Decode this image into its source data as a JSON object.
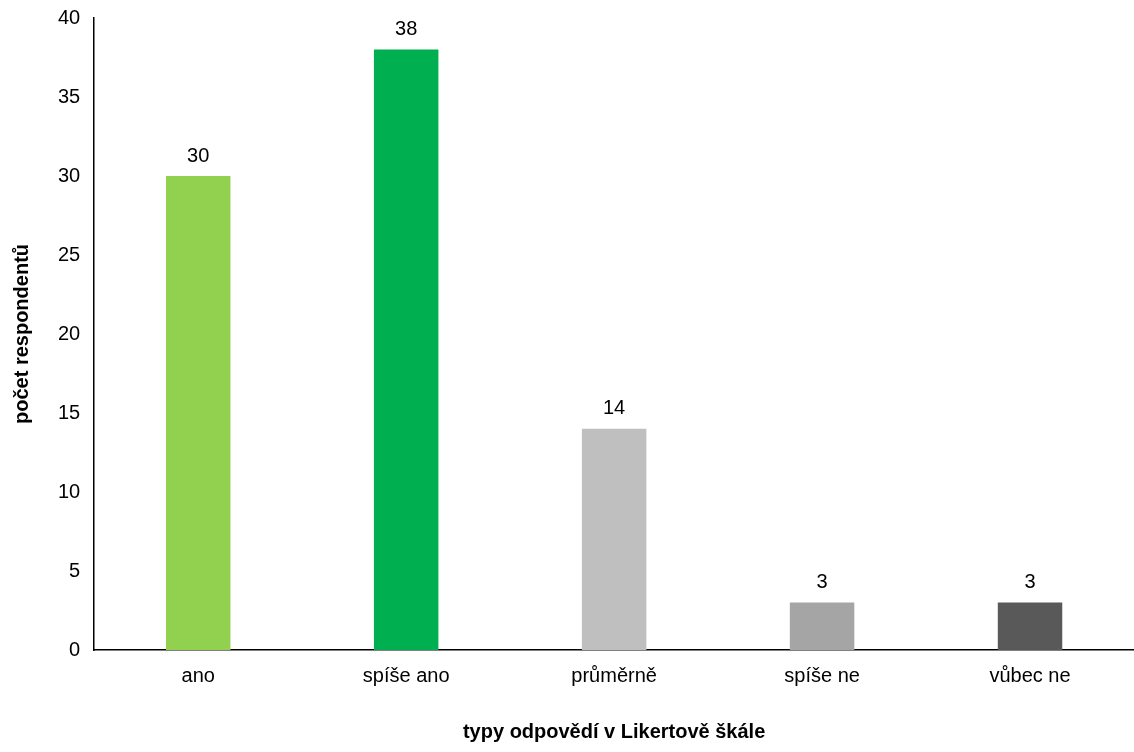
{
  "chart_data": {
    "type": "bar",
    "xlabel": "typy odpovědí v Likertově škále",
    "ylabel": "počet respondentů",
    "categories": [
      "ano",
      "spíše ano",
      "průměrně",
      "spíše ne",
      "vůbec ne"
    ],
    "values": [
      30,
      38,
      14,
      3,
      3
    ],
    "colors": [
      "#92d050",
      "#00b050",
      "#bfbfbf",
      "#a5a5a5",
      "#595959"
    ],
    "ylim": [
      0,
      40
    ],
    "yticks": [
      0,
      5,
      10,
      15,
      20,
      25,
      30,
      35,
      40
    ],
    "grid": false,
    "data_labels": true
  }
}
